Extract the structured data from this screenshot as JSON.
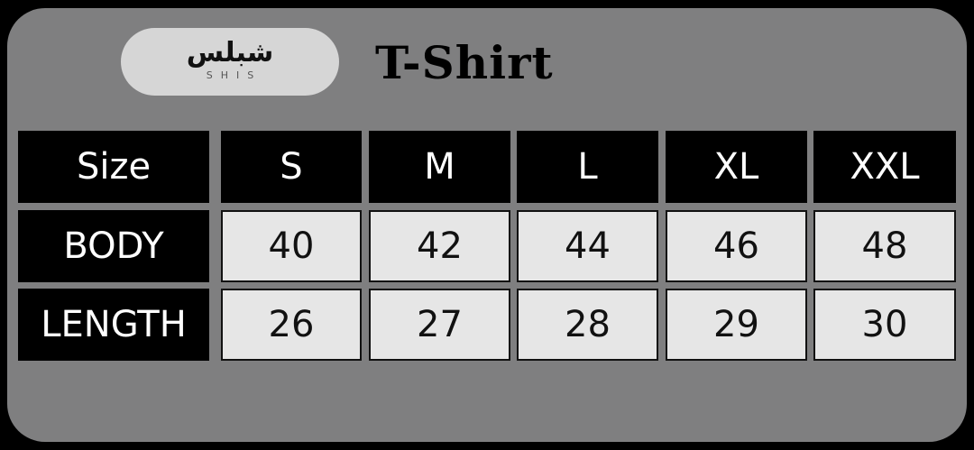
{
  "brand": {
    "logo_arabic": "شبلس",
    "logo_latin": "SHIS"
  },
  "title": "T-Shirt",
  "table": {
    "header": [
      "Size",
      "S",
      "M",
      "L",
      "XL",
      "XXL"
    ],
    "rows": [
      {
        "label": "BODY",
        "values": [
          "40",
          "42",
          "44",
          "46",
          "48"
        ]
      },
      {
        "label": "LENGTH",
        "values": [
          "26",
          "27",
          "28",
          "29",
          "30"
        ]
      }
    ]
  },
  "colors": {
    "background": "#7f7f80",
    "header_cell": "#000000",
    "data_cell": "#e6e6e6"
  }
}
